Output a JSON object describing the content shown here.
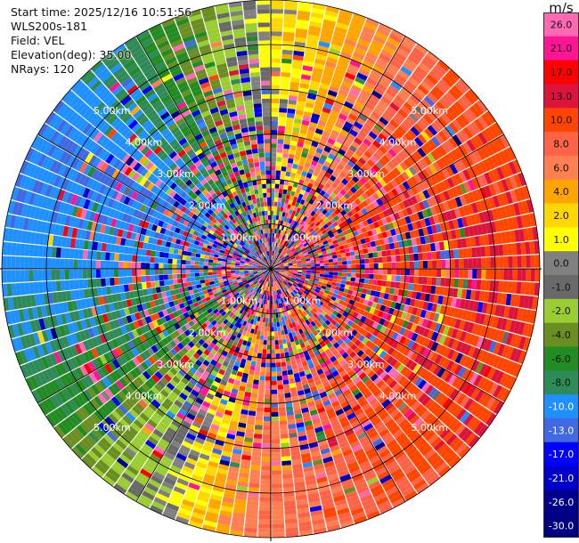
{
  "header": {
    "start_time": "Start time: 2025/12/16 10:51:56",
    "instrument": "WLS200s-181",
    "field": "Field: VEL",
    "elevation": "Elevation(deg): 35.00",
    "nrays": "NRays: 120"
  },
  "chart_data": {
    "type": "ppi",
    "title": "Start time: 2025/12/16 10:51:56",
    "field": "VEL",
    "units": "m/s",
    "n_rays": 120,
    "elevation_deg": 35.0,
    "max_range_km": 6.0,
    "range_ring_labels_km": [
      "1.00km",
      "2.00km",
      "3.00km",
      "4.00km",
      "5.00km"
    ],
    "range_rings_km": [
      1,
      2,
      3,
      4,
      5
    ],
    "colorbar": {
      "label": "m/s",
      "ticks": [
        "26.0",
        "21.0",
        "17.0",
        "13.0",
        "10.0",
        "8.0",
        "6.0",
        "4.0",
        "2.0",
        "1.0",
        "0.0",
        "-1.0",
        "-2.0",
        "-4.0",
        "-6.0",
        "-8.0",
        "-10.0",
        "-13.0",
        "-17.0",
        "-21.0",
        "-26.0",
        "-30.0"
      ],
      "colors": [
        "#ff69b4",
        "#ff1493",
        "#ff0000",
        "#dc143c",
        "#ff4500",
        "#ff6347",
        "#ff7f50",
        "#ffa500",
        "#ffd700",
        "#ffff00",
        "#808080",
        "#696969",
        "#9acd32",
        "#6b8e23",
        "#228b22",
        "#2e8b57",
        "#1e90ff",
        "#4169e1",
        "#0000ff",
        "#0000cd",
        "#00008b",
        "#000080"
      ]
    },
    "sector_velocities": [
      {
        "azimuth_deg": 0,
        "velocity": 0
      },
      {
        "azimuth_deg": 45,
        "velocity": 8
      },
      {
        "azimuth_deg": 90,
        "velocity": 10
      },
      {
        "azimuth_deg": 135,
        "velocity": 9
      },
      {
        "azimuth_deg": 180,
        "velocity": 6
      },
      {
        "azimuth_deg": 210,
        "velocity": -2
      },
      {
        "azimuth_deg": 240,
        "velocity": -8
      },
      {
        "azimuth_deg": 270,
        "velocity": -11
      },
      {
        "azimuth_deg": 300,
        "velocity": -13
      },
      {
        "azimuth_deg": 330,
        "velocity": -8
      }
    ]
  }
}
